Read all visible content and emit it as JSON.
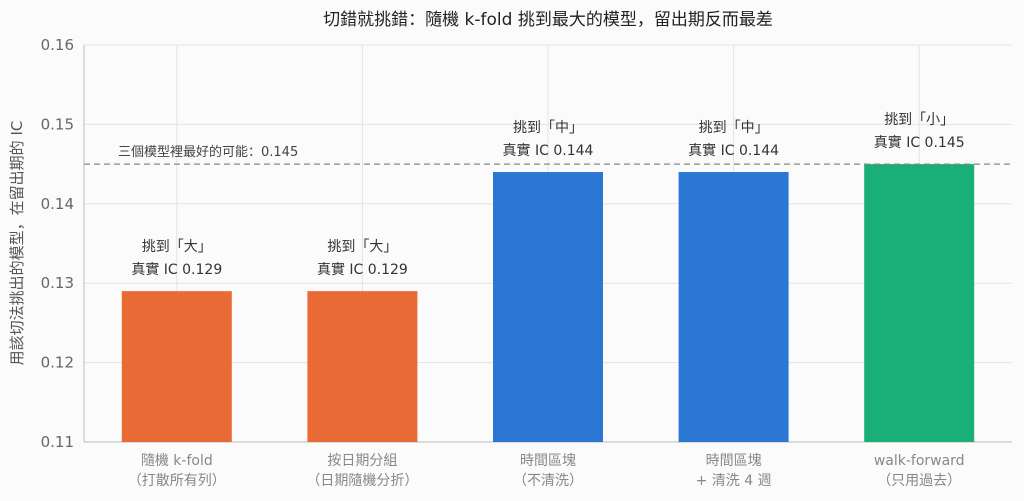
{
  "chart_data": {
    "type": "bar",
    "title": "切錯就挑錯：隨機 k-fold 挑到最大的模型，留出期反而最差",
    "ylabel": "用該切法挑出的模型，在留出期的 IC",
    "xlabel": "",
    "ylim": [
      0.11,
      0.16
    ],
    "yticks": [
      "0.11",
      "0.12",
      "0.13",
      "0.14",
      "0.15",
      "0.16"
    ],
    "grid": true,
    "categories": [
      {
        "line1": "隨機 k-fold",
        "line2": "（打散所有列）"
      },
      {
        "line1": "按日期分組",
        "line2": "（日期隨機分折）"
      },
      {
        "line1": "時間區塊",
        "line2": "（不清洗）"
      },
      {
        "line1": "時間區塊",
        "line2": "+ 清洗 4 週"
      },
      {
        "line1": "walk-forward",
        "line2": "（只用過去）"
      }
    ],
    "values": [
      0.129,
      0.129,
      0.144,
      0.144,
      0.145
    ],
    "colors": [
      "#e96a35",
      "#e96a35",
      "#2a77d4",
      "#2a77d4",
      "#1aae79"
    ],
    "bar_labels": [
      {
        "line1": "挑到「大」",
        "line2": "真實 IC 0.129"
      },
      {
        "line1": "挑到「大」",
        "line2": "真實 IC 0.129"
      },
      {
        "line1": "挑到「中」",
        "line2": "真實 IC 0.144"
      },
      {
        "line1": "挑到「中」",
        "line2": "真實 IC 0.144"
      },
      {
        "line1": "挑到「小」",
        "line2": "真實 IC 0.145"
      }
    ],
    "reference_line": {
      "value": 0.145,
      "label": "三個模型裡最好的可能：0.145"
    }
  }
}
